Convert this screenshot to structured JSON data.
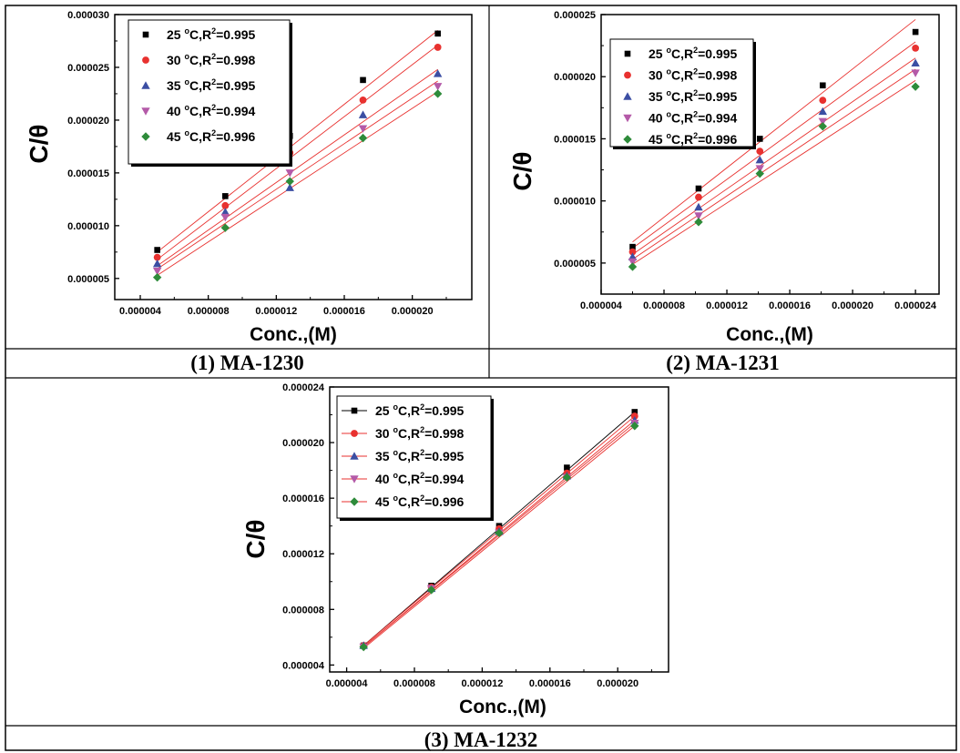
{
  "chart_data": [
    {
      "type": "scatter",
      "caption": "(1) MA-1230",
      "ylabel": "C/θ",
      "xlabel": "Conc.,(M)",
      "xlim": [
        2.5e-06,
        2.35e-05
      ],
      "ylim": [
        3e-06,
        3e-05
      ],
      "xticks": [
        "0.000004",
        "0.000008",
        "0.000012",
        "0.000016",
        "0.000020"
      ],
      "xtick_values": [
        4e-06,
        8e-06,
        1.2e-05,
        1.6e-05,
        2e-05
      ],
      "yticks": [
        "0.000005",
        "0.000010",
        "0.000015",
        "0.000020",
        "0.000025",
        "0.000030"
      ],
      "ytick_values": [
        5e-06,
        1e-05,
        1.5e-05,
        2e-05,
        2.5e-05,
        3e-05
      ],
      "x": [
        5e-06,
        9e-06,
        1.28e-05,
        1.71e-05,
        2.15e-05
      ],
      "legend_position": "top-left",
      "series": [
        {
          "temp": "25 ",
          "r2": "=0.995",
          "color": "#000000",
          "marker": "square",
          "values": [
            7.7e-06,
            1.28e-05,
            1.85e-05,
            2.38e-05,
            2.82e-05
          ],
          "fit": [
            7.5e-06,
            2.85e-05
          ]
        },
        {
          "temp": "30 ",
          "r2": "=0.998",
          "color": "#e8312f",
          "marker": "circle",
          "values": [
            7e-06,
            1.19e-05,
            1.69e-05,
            2.19e-05,
            2.69e-05
          ],
          "fit": [
            6.8e-06,
            2.71e-05
          ]
        },
        {
          "temp": "35 ",
          "r2": "=0.995",
          "color": "#3b4ea3",
          "marker": "triangle-up",
          "values": [
            6.4e-06,
            1.13e-05,
            1.36e-05,
            2.05e-05,
            2.44e-05
          ],
          "fit": [
            6.2e-06,
            2.48e-05
          ]
        },
        {
          "temp": "40 ",
          "r2": "=0.994",
          "color": "#b45aa8",
          "marker": "triangle-down",
          "values": [
            5.7e-06,
            1.08e-05,
            1.5e-05,
            1.92e-05,
            2.32e-05
          ],
          "fit": [
            5.9e-06,
            2.37e-05
          ]
        },
        {
          "temp": "45 ",
          "r2": "=0.996",
          "color": "#2e8b3a",
          "marker": "diamond",
          "values": [
            5.1e-06,
            9.8e-06,
            1.42e-05,
            1.83e-05,
            2.25e-05
          ],
          "fit": [
            5.3e-06,
            2.27e-05
          ]
        }
      ]
    },
    {
      "type": "scatter",
      "caption": "(2) MA-1231",
      "ylabel": "C/θ",
      "xlabel": "Conc.,(M)",
      "xlim": [
        4e-06,
        2.55e-05
      ],
      "ylim": [
        2.5e-06,
        2.5e-05
      ],
      "xticks": [
        "0.000004",
        "0.000008",
        "0.000012",
        "0.000016",
        "0.000020",
        "0.000024"
      ],
      "xtick_values": [
        4e-06,
        8e-06,
        1.2e-05,
        1.6e-05,
        2e-05,
        2.4e-05
      ],
      "yticks": [
        "0.000005",
        "0.000010",
        "0.000015",
        "0.000020",
        "0.000025"
      ],
      "ytick_values": [
        5e-06,
        1e-05,
        1.5e-05,
        2e-05,
        2.5e-05
      ],
      "x": [
        6e-06,
        1.02e-05,
        1.41e-05,
        1.81e-05,
        2.4e-05
      ],
      "legend_position": "top-left",
      "series": [
        {
          "temp": "25 ",
          "r2": "=0.995",
          "color": "#000000",
          "marker": "square",
          "values": [
            6.3e-06,
            1.1e-05,
            1.5e-05,
            1.93e-05,
            2.36e-05
          ],
          "fit": [
            6.7e-06,
            2.46e-05
          ]
        },
        {
          "temp": "30 ",
          "r2": "=0.998",
          "color": "#e8312f",
          "marker": "circle",
          "values": [
            5.9e-06,
            1.03e-05,
            1.4e-05,
            1.81e-05,
            2.23e-05
          ],
          "fit": [
            6.2e-06,
            2.28e-05
          ]
        },
        {
          "temp": "35 ",
          "r2": "=0.995",
          "color": "#3b4ea3",
          "marker": "triangle-up",
          "values": [
            5.5e-06,
            9.5e-06,
            1.33e-05,
            1.72e-05,
            2.11e-05
          ],
          "fit": [
            5.7e-06,
            2.15e-05
          ]
        },
        {
          "temp": "40 ",
          "r2": "=0.994",
          "color": "#b45aa8",
          "marker": "triangle-down",
          "values": [
            5.1e-06,
            8.8e-06,
            1.26e-05,
            1.64e-05,
            2.03e-05
          ],
          "fit": [
            5.3e-06,
            2.06e-05
          ]
        },
        {
          "temp": "45 ",
          "r2": "=0.996",
          "color": "#2e8b3a",
          "marker": "diamond",
          "values": [
            4.7e-06,
            8.3e-06,
            1.22e-05,
            1.6e-05,
            1.92e-05
          ],
          "fit": [
            4.9e-06,
            1.97e-05
          ]
        }
      ]
    },
    {
      "type": "scatter",
      "caption": "(3) MA-1232",
      "ylabel": "C/θ",
      "xlabel": "Conc.,(M)",
      "xlim": [
        3e-06,
        2.3e-05
      ],
      "ylim": [
        3.5e-06,
        2.4e-05
      ],
      "xticks": [
        "0.000004",
        "0.000008",
        "0.000012",
        "0.000016",
        "0.000020"
      ],
      "xtick_values": [
        4e-06,
        8e-06,
        1.2e-05,
        1.6e-05,
        2e-05
      ],
      "yticks": [
        "0.000004",
        "0.000008",
        "0.000012",
        "0.000016",
        "0.000020",
        "0.000024"
      ],
      "ytick_values": [
        4e-06,
        8e-06,
        1.2e-05,
        1.6e-05,
        2e-05,
        2.4e-05
      ],
      "x": [
        5e-06,
        9e-06,
        1.3e-05,
        1.7e-05,
        2.1e-05
      ],
      "legend_position": "top-left",
      "series": [
        {
          "temp": "25 ",
          "r2": "=0.995",
          "color": "#000000",
          "marker": "square",
          "values": [
            5.4e-06,
            9.7e-06,
            1.4e-05,
            1.82e-05,
            2.22e-05
          ],
          "fit": [
            5.4e-06,
            2.22e-05
          ]
        },
        {
          "temp": "30 ",
          "r2": "=0.998",
          "color": "#e8312f",
          "marker": "circle",
          "values": [
            5.4e-06,
            9.6e-06,
            1.38e-05,
            1.78e-05,
            2.19e-05
          ],
          "fit": [
            5.4e-06,
            2.19e-05
          ]
        },
        {
          "temp": "35 ",
          "r2": "=0.995",
          "color": "#3b4ea3",
          "marker": "triangle-up",
          "values": [
            5.4e-06,
            9.5e-06,
            1.36e-05,
            1.76e-05,
            2.16e-05
          ],
          "fit": [
            5.3e-06,
            2.16e-05
          ]
        },
        {
          "temp": "40 ",
          "r2": "=0.994",
          "color": "#b45aa8",
          "marker": "triangle-down",
          "values": [
            5.3e-06,
            9.5e-06,
            1.35e-05,
            1.75e-05,
            2.14e-05
          ],
          "fit": [
            5.3e-06,
            2.14e-05
          ]
        },
        {
          "temp": "45 ",
          "r2": "=0.996",
          "color": "#2e8b3a",
          "marker": "diamond",
          "values": [
            5.3e-06,
            9.4e-06,
            1.35e-05,
            1.75e-05,
            2.12e-05
          ],
          "fit": [
            5.2e-06,
            2.12e-05
          ]
        }
      ]
    }
  ],
  "legend_text": {
    "unit": "C,R",
    "sup": "2",
    "deg": "o"
  }
}
